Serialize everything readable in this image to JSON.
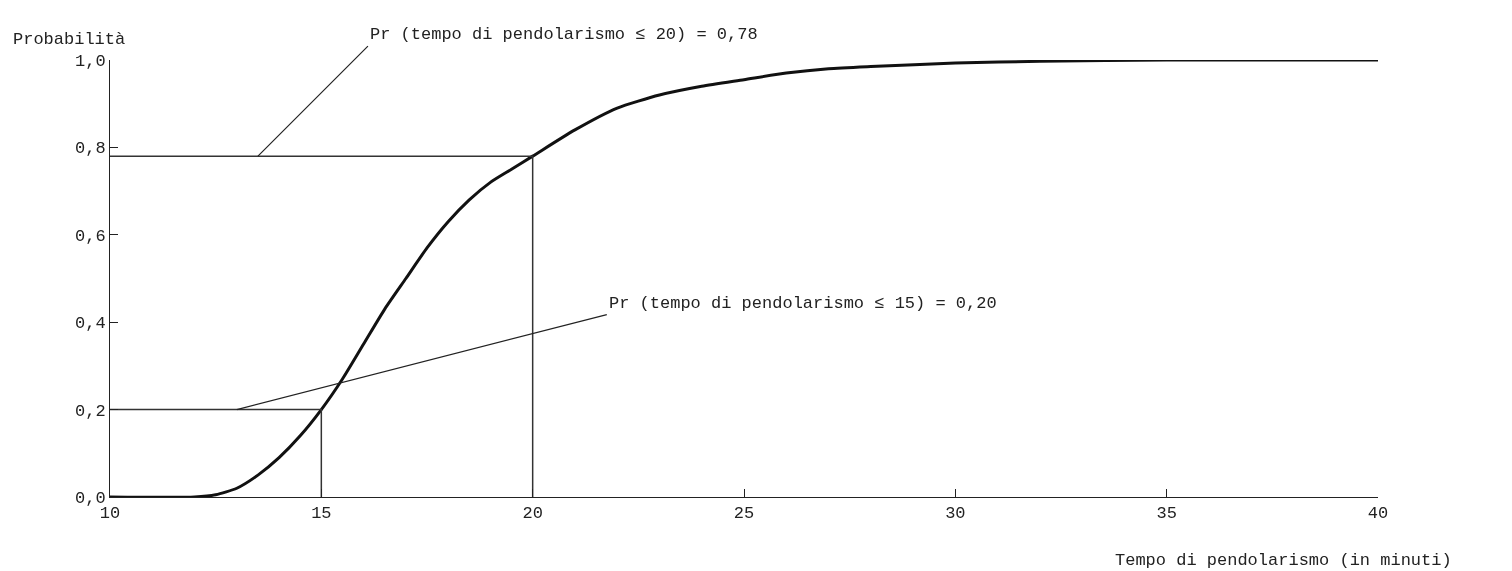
{
  "chart_data": {
    "type": "line",
    "xlabel": "Tempo di pendolarismo (in minuti)",
    "ylabel": "Probabilità",
    "xlim": [
      10,
      40
    ],
    "xticks": [
      10,
      15,
      20,
      25,
      30,
      35,
      40
    ],
    "ylim": [
      0,
      1
    ],
    "yticks": [
      {
        "value": 0,
        "label": "0,0"
      },
      {
        "value": 0.2,
        "label": "0,2"
      },
      {
        "value": 0.4,
        "label": "0,4"
      },
      {
        "value": 0.6,
        "label": "0,6"
      },
      {
        "value": 0.8,
        "label": "0,8"
      },
      {
        "value": 1,
        "label": "1,0"
      }
    ],
    "line_style": "solid",
    "series": [
      {
        "color": "#111111",
        "x": [
          10,
          12,
          12.5,
          13,
          13.5,
          14,
          14.5,
          15,
          15.5,
          16,
          16.5,
          17,
          17.5,
          18,
          18.5,
          19,
          19.5,
          20,
          21,
          22,
          23,
          24,
          25,
          26,
          27,
          28,
          30,
          32,
          35,
          40
        ],
        "values": [
          0,
          0,
          0.005,
          0.02,
          0.05,
          0.09,
          0.14,
          0.2,
          0.27,
          0.35,
          0.43,
          0.5,
          0.57,
          0.63,
          0.68,
          0.72,
          0.75,
          0.78,
          0.84,
          0.89,
          0.92,
          0.94,
          0.955,
          0.97,
          0.98,
          0.985,
          0.993,
          0.997,
          1,
          1
        ]
      },
      {
        "color": "#333333",
        "x": [
          10,
          20,
          20
        ],
        "values": [
          0.78,
          0.78,
          0
        ]
      },
      {
        "color": "#333333",
        "x": [
          10,
          15,
          15
        ],
        "values": [
          0.2,
          0.2,
          0
        ]
      }
    ],
    "annotations": [
      {
        "text": "Pr (tempo di pendolarismo ≤ 20) = 0,78",
        "x": 13.5,
        "y": 0.78
      },
      {
        "text": "Pr (tempo di pendolarismo ≤ 15) = 0,20",
        "x": 13,
        "y": 0.2
      }
    ]
  }
}
